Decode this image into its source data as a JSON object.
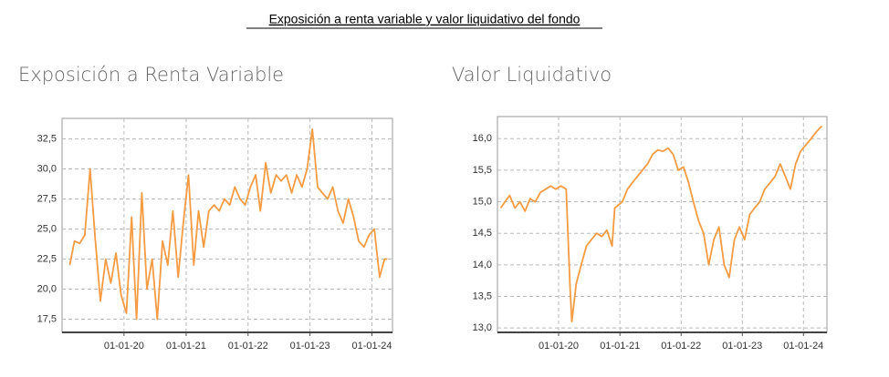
{
  "header": {
    "title": "Exposición a renta variable y valor liquidativo del fondo"
  },
  "chart_data": [
    {
      "type": "line",
      "title": "Exposición a Renta Variable",
      "color": "#f59b42",
      "grid": true,
      "xlim": [
        "2019-01-01",
        "2024-05-01"
      ],
      "xticks": [
        {
          "value": "2020-01-01",
          "label": "01-01-20"
        },
        {
          "value": "2021-01-01",
          "label": "01-01-21"
        },
        {
          "value": "2022-01-01",
          "label": "01-01-22"
        },
        {
          "value": "2023-01-01",
          "label": "01-01-23"
        },
        {
          "value": "2024-01-01",
          "label": "01-01-24"
        }
      ],
      "ylim": [
        16.4,
        34.2
      ],
      "yticks": [
        {
          "value": 17.5,
          "label": "17,5"
        },
        {
          "value": 20,
          "label": "20,0"
        },
        {
          "value": 22.5,
          "label": "22,5"
        },
        {
          "value": 25,
          "label": "25,0"
        },
        {
          "value": 27.5,
          "label": "27,5"
        },
        {
          "value": 30,
          "label": "30,0"
        },
        {
          "value": 32.5,
          "label": "32,5"
        }
      ],
      "x": [
        "2019-02-15",
        "2019-03-15",
        "2019-04-15",
        "2019-05-15",
        "2019-06-15",
        "2019-07-15",
        "2019-08-15",
        "2019-09-15",
        "2019-10-15",
        "2019-11-15",
        "2019-12-15",
        "2020-01-15",
        "2020-02-15",
        "2020-03-15",
        "2020-04-15",
        "2020-05-15",
        "2020-06-15",
        "2020-07-15",
        "2020-08-15",
        "2020-09-15",
        "2020-10-15",
        "2020-11-15",
        "2020-12-15",
        "2021-01-15",
        "2021-02-15",
        "2021-03-15",
        "2021-04-15",
        "2021-05-15",
        "2021-06-15",
        "2021-07-15",
        "2021-08-15",
        "2021-09-15",
        "2021-10-15",
        "2021-11-15",
        "2021-12-15",
        "2022-01-15",
        "2022-02-15",
        "2022-03-15",
        "2022-04-15",
        "2022-05-15",
        "2022-06-15",
        "2022-07-15",
        "2022-08-15",
        "2022-09-15",
        "2022-10-15",
        "2022-11-15",
        "2022-12-15",
        "2023-01-15",
        "2023-02-15",
        "2023-03-15",
        "2023-04-15",
        "2023-05-15",
        "2023-06-15",
        "2023-07-15",
        "2023-08-15",
        "2023-09-15",
        "2023-10-15",
        "2023-11-15",
        "2023-12-15",
        "2024-01-15",
        "2024-02-15",
        "2024-03-15",
        "2024-04-01"
      ],
      "values": [
        22.0,
        24.0,
        23.8,
        24.5,
        30.0,
        24.2,
        19.0,
        22.5,
        20.5,
        23.0,
        19.5,
        18.0,
        26.0,
        17.5,
        28.0,
        20.0,
        22.5,
        17.5,
        24.0,
        22.0,
        26.5,
        21.0,
        25.5,
        29.5,
        22.0,
        26.5,
        23.5,
        26.5,
        27.0,
        26.5,
        27.5,
        27.0,
        28.5,
        27.5,
        27.0,
        28.5,
        29.5,
        26.5,
        30.5,
        28.0,
        29.5,
        29.0,
        29.5,
        28.0,
        29.5,
        28.5,
        30.0,
        33.3,
        28.5,
        28.0,
        27.5,
        28.5,
        26.5,
        25.5,
        27.5,
        26.0,
        24.0,
        23.5,
        24.5,
        25.0,
        21.0,
        22.5,
        22.5
      ]
    },
    {
      "type": "line",
      "title": "Valor Liquidativo",
      "color": "#f59b42",
      "grid": true,
      "xlim": [
        "2019-01-01",
        "2024-05-20"
      ],
      "xticks": [
        {
          "value": "2020-01-01",
          "label": "01-01-20"
        },
        {
          "value": "2021-01-01",
          "label": "01-01-21"
        },
        {
          "value": "2022-01-01",
          "label": "01-01-22"
        },
        {
          "value": "2023-01-01",
          "label": "01-01-23"
        },
        {
          "value": "2024-01-01",
          "label": "01-01-24"
        }
      ],
      "ylim": [
        12.93,
        16.35
      ],
      "yticks": [
        {
          "value": 13,
          "label": "13,0"
        },
        {
          "value": 13.5,
          "label": "13,5"
        },
        {
          "value": 14,
          "label": "14,0"
        },
        {
          "value": 14.5,
          "label": "14,5"
        },
        {
          "value": 15,
          "label": "15,0"
        },
        {
          "value": 15.5,
          "label": "15,5"
        },
        {
          "value": 16,
          "label": "16,0"
        }
      ],
      "x": [
        "2019-01-20",
        "2019-02-15",
        "2019-03-15",
        "2019-04-15",
        "2019-05-15",
        "2019-06-15",
        "2019-07-15",
        "2019-08-15",
        "2019-09-15",
        "2019-10-15",
        "2019-11-15",
        "2019-12-15",
        "2020-01-15",
        "2020-02-15",
        "2020-03-10",
        "2020-03-20",
        "2020-04-15",
        "2020-05-15",
        "2020-06-15",
        "2020-07-15",
        "2020-08-15",
        "2020-09-15",
        "2020-10-15",
        "2020-11-15",
        "2020-12-01",
        "2021-01-15",
        "2021-02-15",
        "2021-03-15",
        "2021-04-15",
        "2021-05-15",
        "2021-06-15",
        "2021-07-15",
        "2021-08-15",
        "2021-09-15",
        "2021-10-15",
        "2021-11-15",
        "2021-12-15",
        "2022-01-15",
        "2022-02-15",
        "2022-03-15",
        "2022-04-15",
        "2022-05-15",
        "2022-06-15",
        "2022-07-15",
        "2022-08-15",
        "2022-09-15",
        "2022-10-15",
        "2022-11-15",
        "2022-12-15",
        "2023-01-15",
        "2023-02-15",
        "2023-03-15",
        "2023-04-15",
        "2023-05-15",
        "2023-06-15",
        "2023-07-15",
        "2023-08-15",
        "2023-09-15",
        "2023-10-15",
        "2023-11-15",
        "2023-12-15",
        "2024-01-15",
        "2024-02-15",
        "2024-03-15",
        "2024-04-20"
      ],
      "values": [
        14.9,
        15.0,
        15.1,
        14.9,
        15.0,
        14.85,
        15.05,
        15.0,
        15.15,
        15.2,
        15.25,
        15.2,
        15.25,
        15.2,
        13.6,
        13.1,
        13.7,
        14.0,
        14.3,
        14.4,
        14.5,
        14.45,
        14.55,
        14.3,
        14.9,
        15.0,
        15.2,
        15.3,
        15.4,
        15.5,
        15.6,
        15.75,
        15.82,
        15.8,
        15.85,
        15.75,
        15.5,
        15.55,
        15.3,
        15.0,
        14.7,
        14.5,
        14.0,
        14.4,
        14.6,
        14.0,
        13.8,
        14.4,
        14.6,
        14.4,
        14.8,
        14.9,
        15.0,
        15.2,
        15.3,
        15.4,
        15.6,
        15.4,
        15.2,
        15.6,
        15.8,
        15.9,
        16.0,
        16.1,
        16.2
      ]
    }
  ]
}
